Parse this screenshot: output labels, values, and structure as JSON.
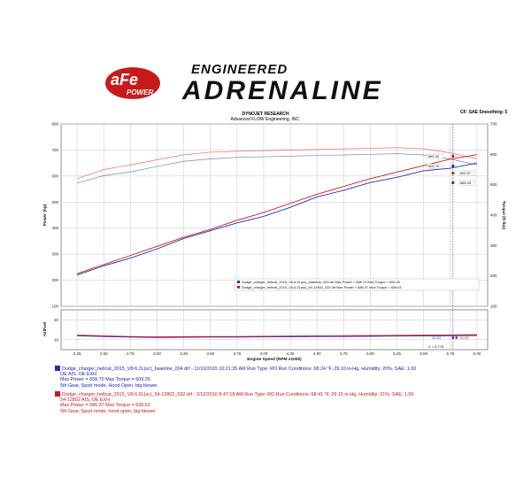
{
  "branding": {
    "logo_text": "aFe",
    "logo_sub": "POWER",
    "banner_top": "ENGINEERED",
    "banner_main": "ADRENALINE"
  },
  "header": {
    "title": "DYNOJET RESEARCH",
    "company": "Advanced FLOW Engineering, INC.",
    "settings": "CF: SAE  Smoothing: 5"
  },
  "colors": {
    "baseline": "#2a2ab8",
    "modified": "#d0141a",
    "grid": "#c8c8c8",
    "background": "#ffffff"
  },
  "chart_data": {
    "type": "line",
    "xlabel": "Engine Speed (RPM x1000)",
    "ylabel": "Power (hp)",
    "ylabel_right": "Torque (ft-lbs)",
    "ylabel_afr": "Air/Fuel",
    "x_ticks": [
      "2.25",
      "2.50",
      "2.75",
      "3.00",
      "3.25",
      "3.50",
      "3.75",
      "4.00",
      "4.25",
      "4.50",
      "4.75",
      "5.00",
      "5.25",
      "5.50",
      "5.75",
      "6.00"
    ],
    "xlim": [
      2.1,
      6.1
    ],
    "power_ticks": [
      "100",
      "200",
      "300",
      "400",
      "500",
      "600",
      "700",
      "800"
    ],
    "torque_ticks": [
      "100",
      "200",
      "300",
      "400",
      "500",
      "600",
      "700"
    ],
    "afr_ticks": [
      "10",
      "20"
    ],
    "ylim_power": [
      100,
      800
    ],
    "ylim_torque": [
      100,
      700
    ],
    "ylim_afr": [
      5,
      25
    ],
    "grid": true,
    "series": [
      {
        "name": "Dodge_charger_hellcat_2015_V8-6.2L(sc)_baseline_004.drf",
        "color": "#2a2ab8",
        "x": [
          2.25,
          2.5,
          2.75,
          3.0,
          3.25,
          3.5,
          3.75,
          4.0,
          4.25,
          4.5,
          4.75,
          5.0,
          5.25,
          5.5,
          5.75,
          6.0
        ],
        "power": [
          220,
          255,
          285,
          320,
          360,
          390,
          420,
          445,
          480,
          520,
          545,
          575,
          595,
          620,
          630,
          650
        ],
        "torque": [
          505,
          530,
          542,
          560,
          577,
          585,
          590,
          592,
          594,
          596,
          598,
          600,
          602,
          598,
          585,
          565
        ],
        "afr": [
          12.0,
          11.6,
          11.3,
          11.1,
          11.2,
          11.3,
          11.3,
          11.4,
          11.5,
          11.6,
          11.6,
          11.7,
          11.8,
          11.9,
          12.0,
          12.1
        ]
      },
      {
        "name": "Dodge_charger_hellcat_2015_V8-6.2L(sc)_54-12802_032.drf",
        "color": "#d0141a",
        "x": [
          2.25,
          2.5,
          2.75,
          3.0,
          3.25,
          3.5,
          3.75,
          4.0,
          4.25,
          4.5,
          4.75,
          5.0,
          5.25,
          5.5,
          5.75,
          6.0
        ],
        "power": [
          225,
          260,
          295,
          330,
          365,
          395,
          430,
          460,
          495,
          530,
          560,
          590,
          615,
          640,
          665,
          682
        ],
        "torque": [
          520,
          550,
          565,
          582,
          598,
          607,
          610,
          612,
          614,
          616,
          618,
          620,
          622,
          618,
          605,
          585
        ],
        "afr": [
          12.3,
          11.9,
          11.6,
          11.4,
          11.5,
          11.6,
          11.6,
          11.7,
          11.8,
          11.9,
          12.0,
          12.1,
          12.2,
          12.3,
          12.4,
          12.5
        ]
      }
    ],
    "annotations": {
      "peak_labels": [
        "665.45",
        "626.70",
        "605.37",
        "566.05"
      ],
      "afr_labels": [
        "12.43",
        "11.55"
      ],
      "cursor_label": "X = 5.775",
      "inset_legend": [
        "Dodge_charger_hellcat_2015_V8-6.2L(sc)_baseline_004.drf Max Power = 658.70    Max Torque = 609.25",
        "Dodge_charger_hellcat_2015_V8-6.2L(sc)_54-12802_032.drf Max Power = 686.37    Max Torque = 626.61"
      ]
    }
  },
  "runs": [
    {
      "line1": "Dodge_charger_hellcat_2015_V8-6.2L(sc)_baseline_004.drf - 11/10/2015 10:21:35 AM  Run Type: RO  Run Conditions: 68.24 °F, 29.10 in-Hg,  Humidity:  20%, SAE: 1.00",
      "line2": "OE AIS, OE EXH",
      "line3": "Max Power = 658.70  Max Torque = 609.25",
      "line4": "5th Gear, Sport mode, Hood Open, big blower"
    },
    {
      "line1": "Dodge_charger_hellcat_2015_V8-6.2L(sc)_54-12802_032.drf - 2/12/2016 8:47:18 AM  Run Type: RO  Run Conditions: 68.41 °F, 29.15 in-Hg,  Humidity:  21%, SAE: 1.00",
      "line2": "54-12802 AIS, OE EXH",
      "line3": "Max Power = 686.37  Max Torque = 626.61",
      "line4": "5th Gear, Sport mode, hood open, big blower"
    }
  ]
}
